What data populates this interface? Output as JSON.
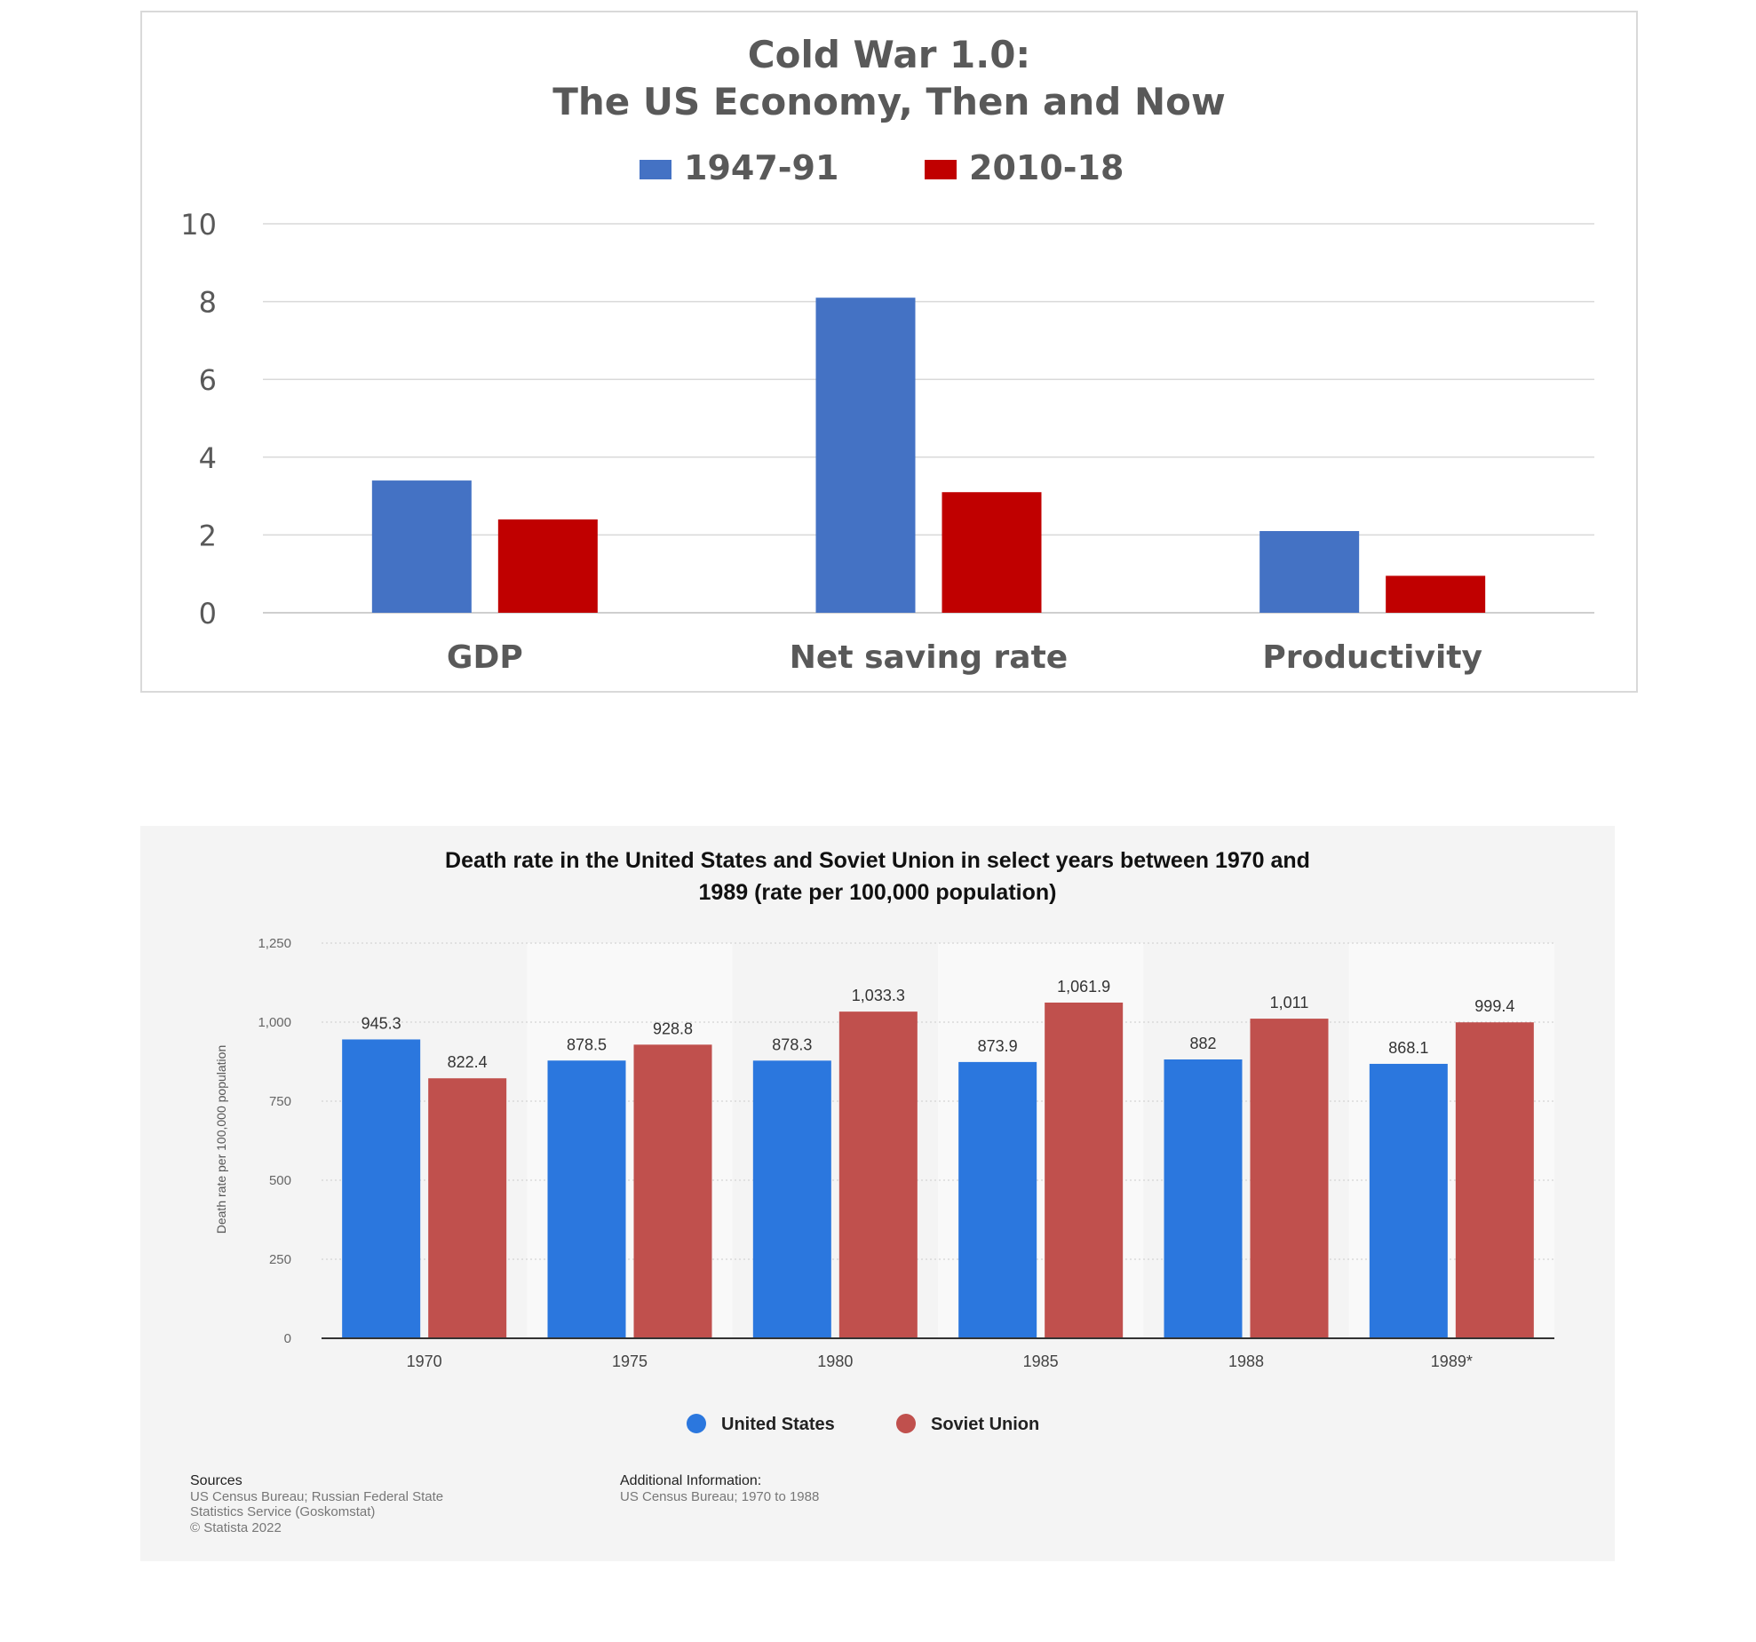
{
  "chart_data": [
    {
      "type": "bar",
      "title": "Cold War 1.0:",
      "subtitle": "The US Economy, Then and Now",
      "categories": [
        "GDP",
        "Net saving rate",
        "Productivity"
      ],
      "series": [
        {
          "name": "1947-91",
          "values": [
            3.4,
            8.1,
            2.1
          ],
          "color": "#4472c4"
        },
        {
          "name": "2010-18",
          "values": [
            2.4,
            3.1,
            0.95
          ],
          "color": "#c00000"
        }
      ],
      "ylim": [
        0,
        10
      ],
      "yticks": [
        "0",
        "2",
        "4",
        "6",
        "8",
        "10"
      ],
      "legend": "top",
      "grid": true
    },
    {
      "type": "bar",
      "title": "Death rate in the United States and Soviet Union in select years between 1970 and 1989 (rate per 100,000 population)",
      "title_lines": [
        "Death rate in the United States and Soviet Union in select years between 1970 and",
        "1989 (rate per 100,000 population)"
      ],
      "ylabel": "Death rate per 100,000 population",
      "categories": [
        "1970",
        "1975",
        "1980",
        "1985",
        "1988",
        "1989*"
      ],
      "series": [
        {
          "name": "United States",
          "values": [
            945.3,
            878.5,
            878.3,
            873.9,
            882,
            868.1
          ],
          "labels": [
            "945.3",
            "878.5",
            "878.3",
            "873.9",
            "882",
            "868.1"
          ],
          "color": "#2b77de"
        },
        {
          "name": "Soviet Union",
          "values": [
            822.4,
            928.8,
            1033.3,
            1061.9,
            1011,
            999.4
          ],
          "labels": [
            "822.4",
            "928.8",
            "1,033.3",
            "1,061.9",
            "1,011",
            "999.4"
          ],
          "color": "#c0504d"
        }
      ],
      "ylim": [
        0,
        1250
      ],
      "yticks": [
        "0",
        "250",
        "500",
        "750",
        "1,000",
        "1,250"
      ],
      "legend": "bottom",
      "grid": true,
      "sources_heading": "Sources",
      "sources_lines": [
        "US Census Bureau; Russian Federal State",
        "Statistics Service (Goskomstat)",
        "© Statista 2022"
      ],
      "additional_heading": "Additional Information:",
      "additional_lines": [
        "US Census Bureau; 1970 to 1988"
      ]
    }
  ]
}
